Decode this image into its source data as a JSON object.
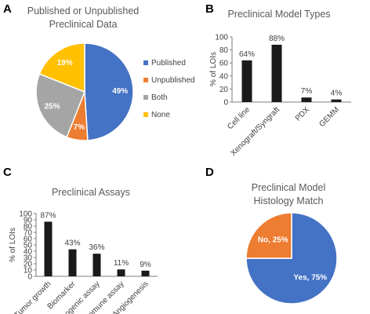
{
  "panels": {
    "a": "A",
    "b": "B",
    "c": "C",
    "d": "D"
  },
  "chart_data": [
    {
      "panel": "A",
      "type": "pie",
      "title": "Published or Unpublished Preclinical Data",
      "title_lines": [
        "Published or Unpublished",
        "Preclinical Data"
      ],
      "slices": [
        {
          "label": "Published",
          "value": 49,
          "value_label": "49%",
          "color": "#4472C4"
        },
        {
          "label": "Unpublished",
          "value": 7,
          "value_label": "7%",
          "color": "#ED7D31"
        },
        {
          "label": "Both",
          "value": 25,
          "value_label": "25%",
          "color": "#A5A5A5"
        },
        {
          "label": "None",
          "value": 19,
          "value_label": "19%",
          "color": "#FFC000"
        }
      ],
      "legend_position": "right"
    },
    {
      "panel": "B",
      "type": "bar",
      "title": "Preclinical Model Types",
      "categories": [
        "Cell line",
        "Xenograft/Syngraft",
        "PDX",
        "GEMM"
      ],
      "values": [
        64,
        88,
        7,
        4
      ],
      "value_labels": [
        "64%",
        "88%",
        "7%",
        "4%"
      ],
      "ylabel": "% of LOIs",
      "ylim": [
        0,
        100
      ],
      "yticks": [
        0,
        20,
        40,
        60,
        80,
        100
      ],
      "color": "#1a1a1a"
    },
    {
      "panel": "C",
      "type": "bar",
      "title": "Preclinical Assays",
      "categories": [
        "Tumor growth",
        "Biomarker",
        "Clonogenic assay",
        "Immune assay",
        "Angiogenesis"
      ],
      "values": [
        87,
        43,
        36,
        11,
        9
      ],
      "value_labels": [
        "87%",
        "43%",
        "36%",
        "11%",
        "9%"
      ],
      "ylabel": "% of LOIs",
      "ylim": [
        0,
        100
      ],
      "yticks": [
        0,
        10,
        20,
        30,
        40,
        50,
        60,
        70,
        80,
        90,
        100
      ],
      "color": "#1a1a1a"
    },
    {
      "panel": "D",
      "type": "pie",
      "title": "Preclinical Model Histology Match",
      "title_lines": [
        "Preclinical Model",
        "Histology Match"
      ],
      "slices": [
        {
          "label": "Yes",
          "value": 75,
          "value_label": "Yes, 75%",
          "color": "#4472C4"
        },
        {
          "label": "No",
          "value": 25,
          "value_label": "No, 25%",
          "color": "#ED7D31"
        }
      ]
    }
  ]
}
